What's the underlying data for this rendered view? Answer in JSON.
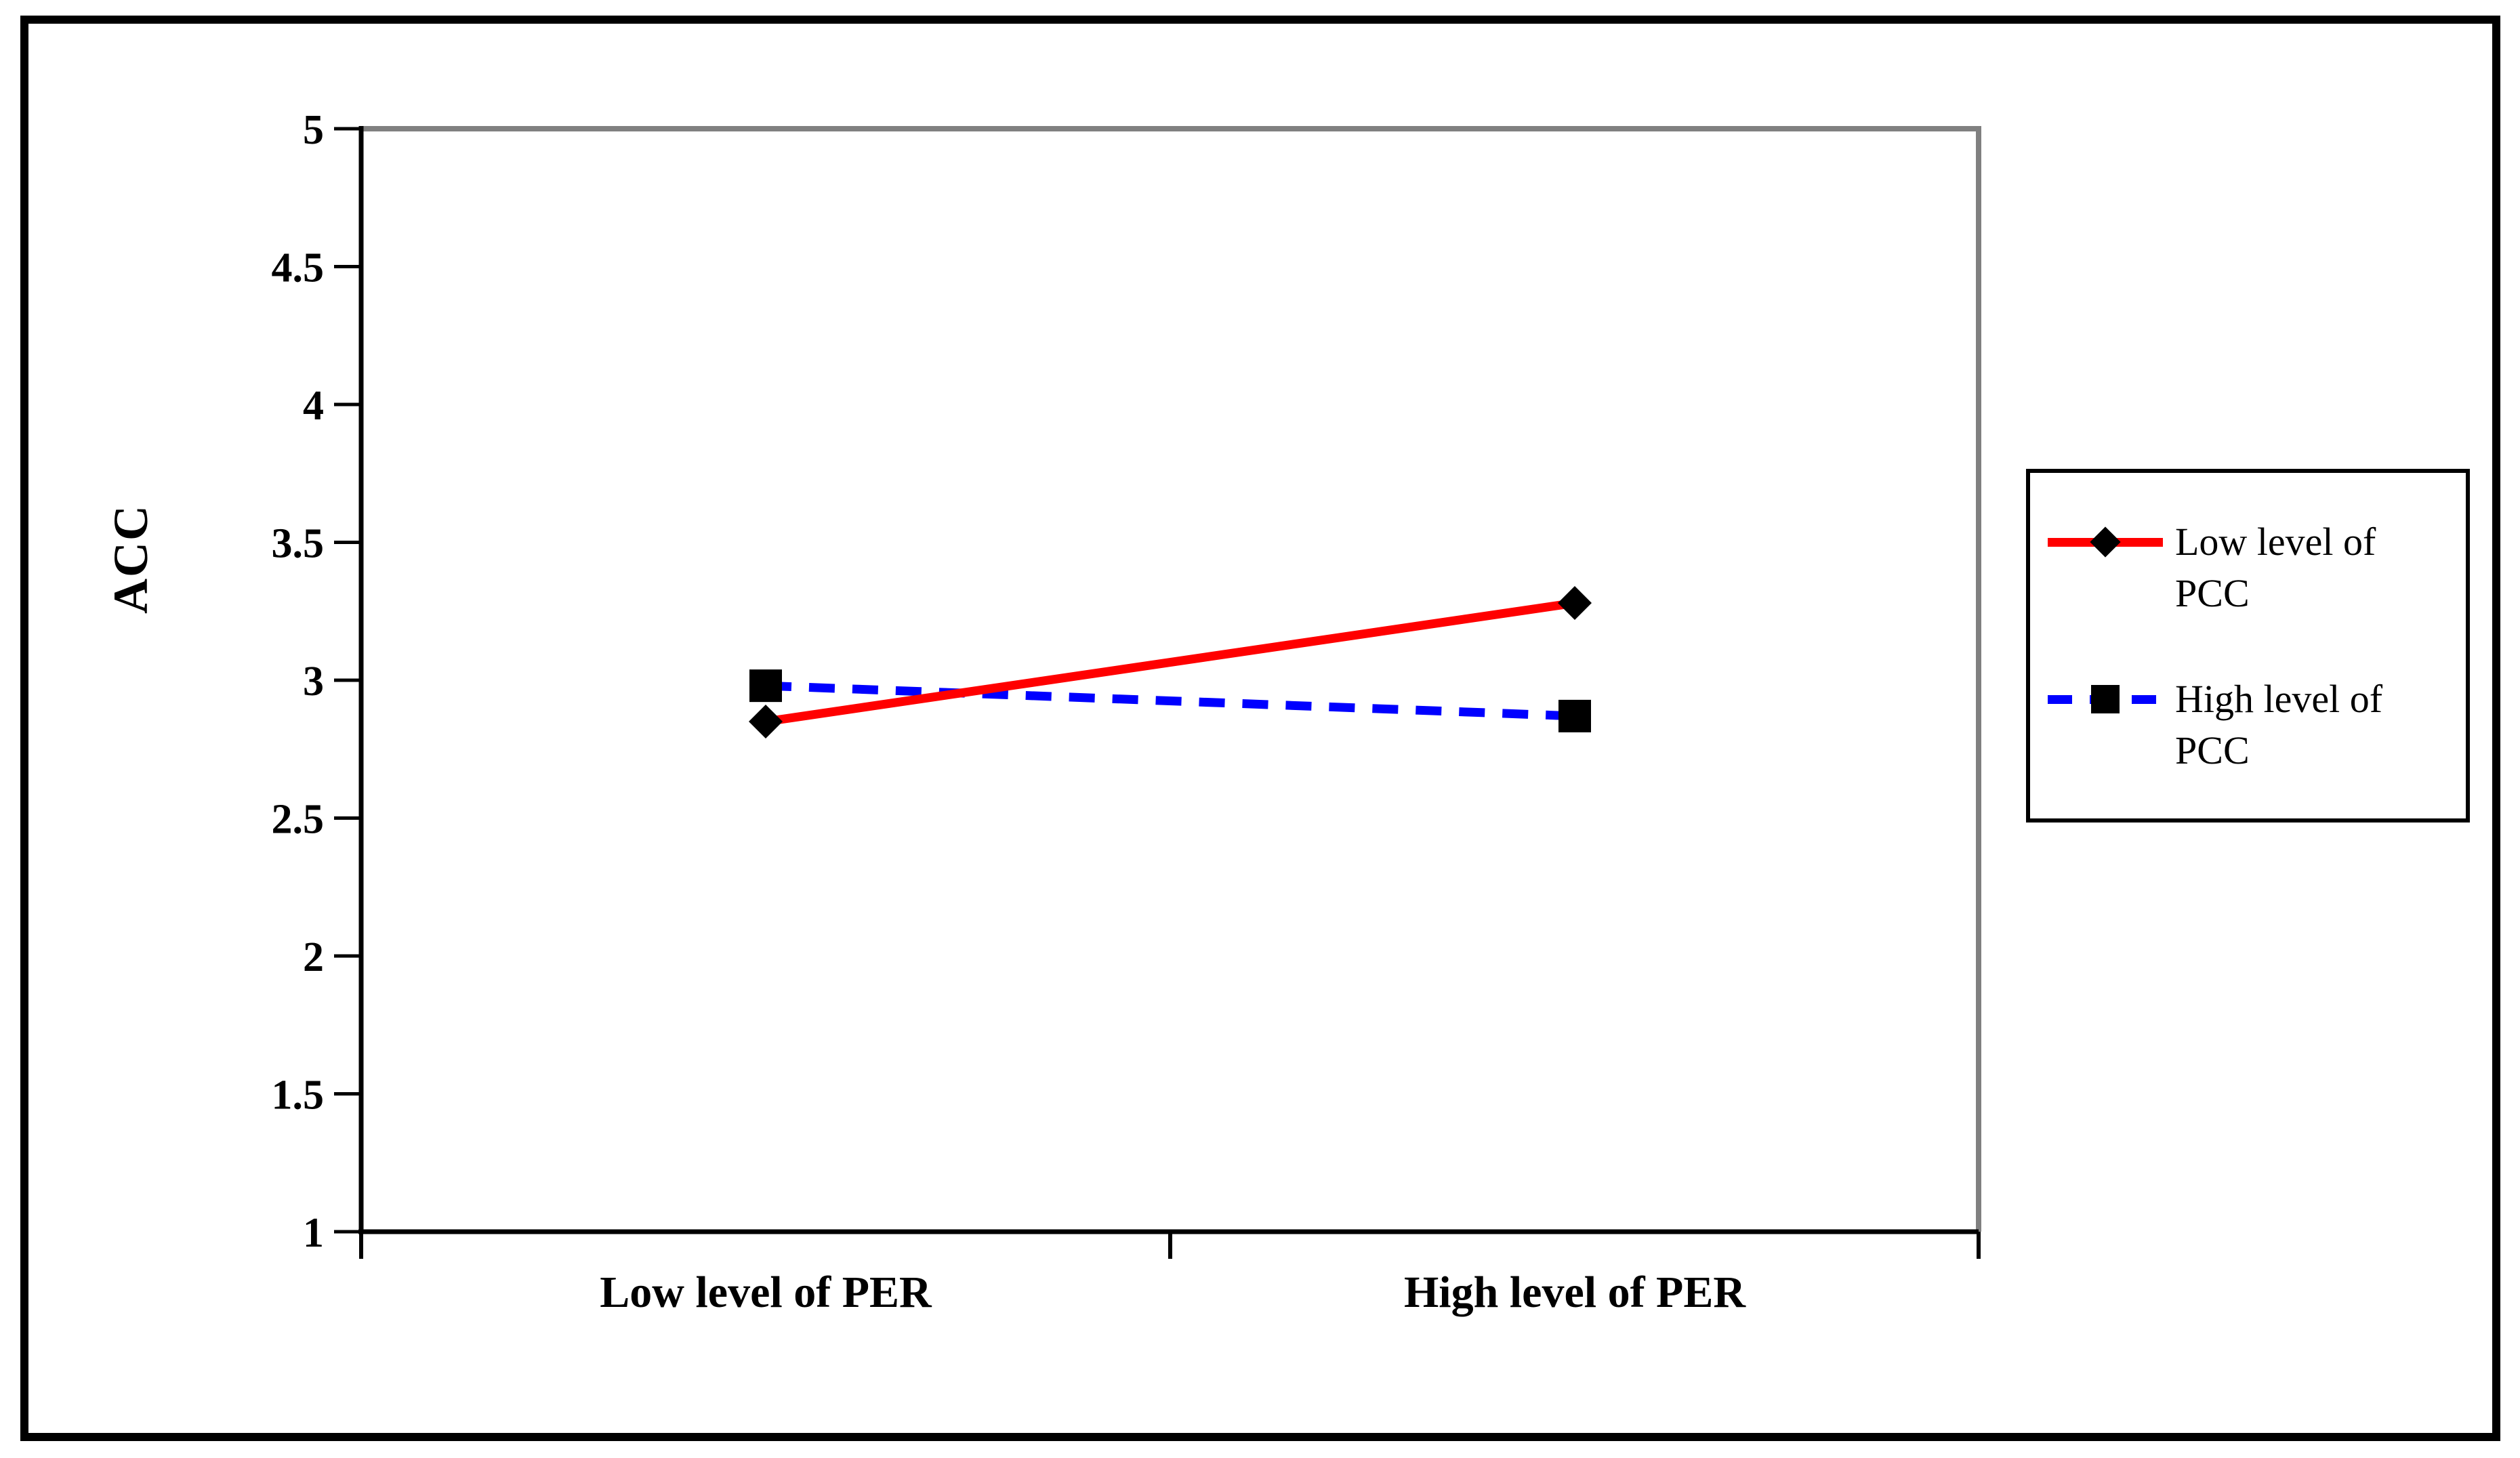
{
  "chart_data": {
    "type": "line",
    "title": "",
    "ylabel": "ACC",
    "xlabel": "",
    "categories": [
      "Low level of PER",
      "High level of PER"
    ],
    "ylim": [
      1,
      5
    ],
    "yticks": [
      1,
      1.5,
      2,
      2.5,
      3,
      3.5,
      4,
      4.5,
      5
    ],
    "grid": "off",
    "legend_position": "right",
    "axis_color": "#000000",
    "plot_box_color": "#808080",
    "series": [
      {
        "name": "Low level of PCC",
        "values": [
          2.85,
          3.28
        ],
        "color": "#ff0000",
        "line_style": "solid",
        "marker": "diamond",
        "marker_color": "#000000"
      },
      {
        "name": "High level of PCC",
        "values": [
          2.98,
          2.87
        ],
        "color": "#0000ff",
        "line_style": "dashed",
        "marker": "square",
        "marker_color": "#000000"
      }
    ]
  }
}
